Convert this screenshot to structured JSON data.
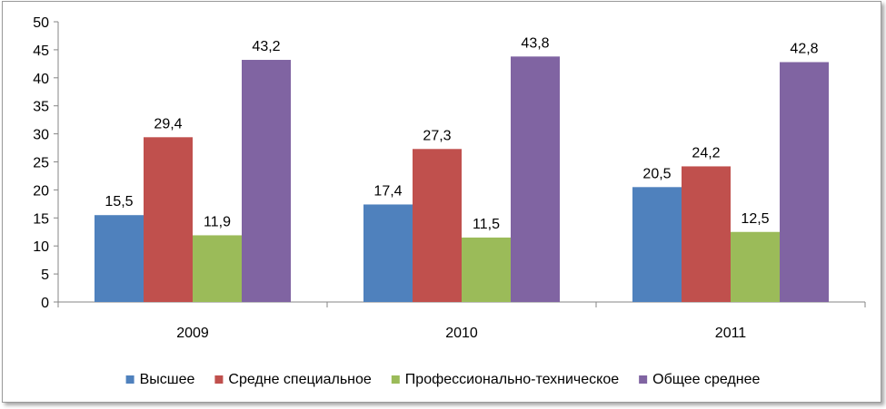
{
  "chart_data": {
    "type": "bar",
    "title": "",
    "xlabel": "",
    "ylabel": "",
    "categories": [
      "2009",
      "2010",
      "2011"
    ],
    "ylim": [
      0,
      50
    ],
    "yticks": [
      0,
      5,
      10,
      15,
      20,
      25,
      30,
      35,
      40,
      45,
      50
    ],
    "grid": false,
    "legend_position": "bottom",
    "series": [
      {
        "name": "Высшее",
        "color": "#4f81bd",
        "values": [
          15.5,
          17.4,
          20.5
        ],
        "labels": [
          "15,5",
          "17,4",
          "20,5"
        ]
      },
      {
        "name": "Средне специальное",
        "color": "#c0504d",
        "values": [
          29.4,
          27.3,
          24.2
        ],
        "labels": [
          "29,4",
          "27,3",
          "24,2"
        ]
      },
      {
        "name": "Профессионально-техническое",
        "color": "#9bbb59",
        "values": [
          11.9,
          11.5,
          12.5
        ],
        "labels": [
          "11,9",
          "11,5",
          "12,5"
        ]
      },
      {
        "name": "Общее среднее",
        "color": "#8064a2",
        "values": [
          43.2,
          43.8,
          42.8
        ],
        "labels": [
          "43,2",
          "43,8",
          "42,8"
        ]
      }
    ]
  }
}
